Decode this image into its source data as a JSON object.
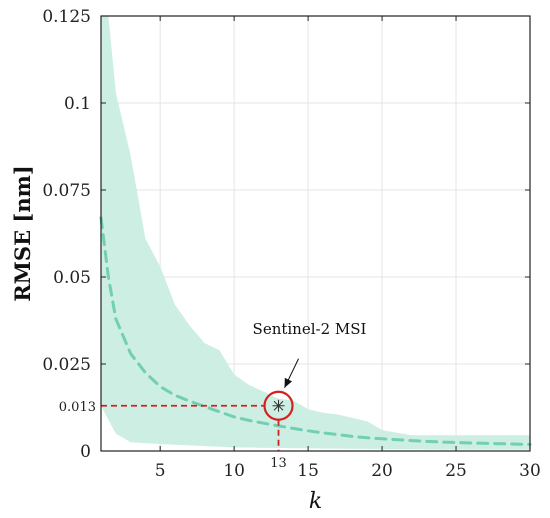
{
  "chart_data": {
    "type": "line",
    "title": "",
    "xlabel": "k",
    "ylabel": "RMSE [nm]",
    "xlim": [
      1,
      30
    ],
    "ylim": [
      0,
      0.125
    ],
    "grid": true,
    "x_ticks": [
      5,
      10,
      15,
      20,
      25,
      30
    ],
    "x_tick_labels": [
      "5",
      "10",
      "15",
      "20",
      "25",
      "30"
    ],
    "y_ticks": [
      0,
      0.025,
      0.05,
      0.075,
      0.1,
      0.125
    ],
    "y_tick_labels": [
      "0",
      "0.025",
      "0.05",
      "0.075",
      "0.1",
      "0.125"
    ],
    "colors": {
      "band": "#cdeee3",
      "mean": "#72cfb0",
      "highlight": "#d62020",
      "grid": "#e4e4e4",
      "frame": "#222222"
    },
    "band": {
      "x": [
        1,
        1.5,
        2,
        3,
        4,
        5,
        6,
        7,
        8,
        9,
        10,
        11,
        12,
        13,
        14,
        15,
        16,
        17,
        18,
        19,
        20,
        22,
        24,
        26,
        28,
        30
      ],
      "upper": [
        0.145,
        0.125,
        0.103,
        0.085,
        0.061,
        0.053,
        0.042,
        0.036,
        0.031,
        0.029,
        0.022,
        0.019,
        0.017,
        0.015,
        0.0145,
        0.012,
        0.011,
        0.0105,
        0.0095,
        0.0085,
        0.006,
        0.0045,
        0.0045,
        0.0045,
        0.0045,
        0.0045
      ],
      "lower": [
        0.013,
        0.009,
        0.005,
        0.0025,
        0.0022,
        0.002,
        0.0018,
        0.0016,
        0.0014,
        0.0012,
        0.001,
        0.001,
        0.0009,
        0.0009,
        0.0008,
        0.0008,
        0.0007,
        0.0007,
        0.0006,
        0.0006,
        0.0005,
        0.0005,
        0.0004,
        0.0004,
        0.0004,
        0.0004
      ]
    },
    "series": [
      {
        "x": [
          1,
          1.5,
          2,
          3,
          4,
          5,
          6,
          7,
          8,
          9,
          10,
          11,
          12,
          13,
          14,
          15,
          16,
          17,
          18,
          19,
          20,
          22,
          24,
          26,
          28,
          30
        ],
        "values": [
          0.067,
          0.05,
          0.038,
          0.028,
          0.0225,
          0.0185,
          0.016,
          0.0143,
          0.0128,
          0.0113,
          0.0098,
          0.0088,
          0.008,
          0.0072,
          0.0065,
          0.0058,
          0.0052,
          0.0047,
          0.0042,
          0.0038,
          0.0035,
          0.003,
          0.0026,
          0.0023,
          0.0021,
          0.0019
        ]
      }
    ],
    "highlight": {
      "x": 13,
      "y": 0.013,
      "x_label": "13",
      "y_label": "0.013",
      "annotation": "Sentinel-2 MSI"
    }
  }
}
